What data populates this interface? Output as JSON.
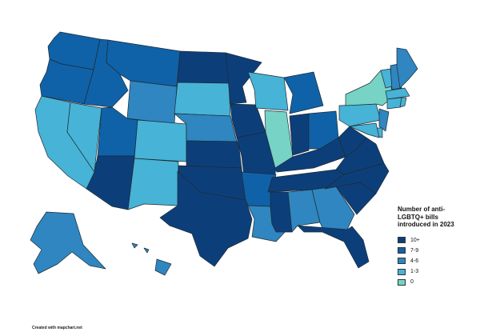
{
  "legend": {
    "title": "Number of anti-LGBTQ+ bills introduced in 2023",
    "items": [
      {
        "label": "10+",
        "color": "#0c3f7a"
      },
      {
        "label": "7-9",
        "color": "#0f62a8"
      },
      {
        "label": "4-6",
        "color": "#2f86c0"
      },
      {
        "label": "1-3",
        "color": "#47b3d6"
      },
      {
        "label": "0",
        "color": "#76d3c6"
      }
    ]
  },
  "credit": "Created with mapchart.net",
  "states": {
    "WA": "7-9",
    "OR": "7-9",
    "CA": "1-3",
    "NV": "1-3",
    "ID": "7-9",
    "MT": "7-9",
    "WY": "4-6",
    "UT": "7-9",
    "AZ": "10+",
    "NM": "1-3",
    "CO": "1-3",
    "ND": "10+",
    "SD": "1-3",
    "NE": "4-6",
    "KS": "10+",
    "OK": "10+",
    "TX": "10+",
    "MN": "10+",
    "IA": "10+",
    "MO": "10+",
    "AR": "7-9",
    "LA": "4-6",
    "WI": "1-3",
    "IL": "0",
    "MI": "7-9",
    "IN": "10+",
    "OH": "7-9",
    "KY": "10+",
    "TN": "10+",
    "MS": "10+",
    "AL": "4-6",
    "GA": "4-6",
    "FL": "10+",
    "SC": "10+",
    "NC": "10+",
    "VA": "10+",
    "WV": "10+",
    "PA": "1-3",
    "NY": "0",
    "VT": "1-3",
    "NH": "4-6",
    "ME": "4-6",
    "MA": "1-3",
    "CT": "1-3",
    "RI": "1-3",
    "NJ": "4-6",
    "DE": "1-3",
    "MD": "1-3",
    "AK": "4-6",
    "HI": "4-6"
  }
}
